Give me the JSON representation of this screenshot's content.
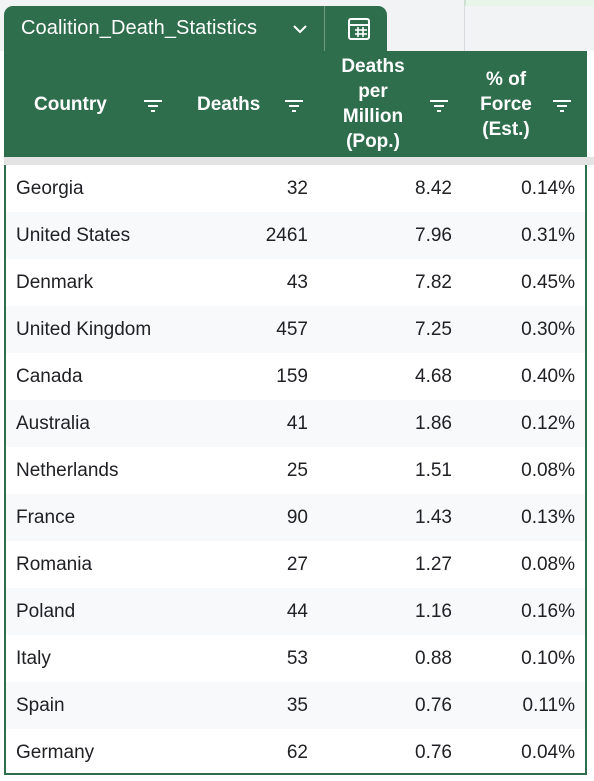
{
  "sheet": {
    "name": "Coalition_Death_Statistics"
  },
  "colors": {
    "header_green": "#2f6e4c",
    "header_text": "#ffffff",
    "alt_row": "#f8f9fa"
  },
  "icons": {
    "dropdown": "chevron-down-icon",
    "table": "table-icon",
    "filter": "filter-icon"
  },
  "columns": [
    {
      "lines": [
        "Country"
      ]
    },
    {
      "lines": [
        "Deaths"
      ]
    },
    {
      "lines": [
        "Deaths",
        "per",
        "Million",
        "(Pop.)"
      ]
    },
    {
      "lines": [
        "% of",
        "Force",
        "(Est.)"
      ]
    }
  ],
  "rows": [
    {
      "country": "Georgia",
      "deaths": "32",
      "per_million": "8.42",
      "force": "0.14%"
    },
    {
      "country": "United States",
      "deaths": "2461",
      "per_million": "7.96",
      "force": "0.31%"
    },
    {
      "country": "Denmark",
      "deaths": "43",
      "per_million": "7.82",
      "force": "0.45%"
    },
    {
      "country": "United Kingdom",
      "deaths": "457",
      "per_million": "7.25",
      "force": "0.30%"
    },
    {
      "country": "Canada",
      "deaths": "159",
      "per_million": "4.68",
      "force": "0.40%"
    },
    {
      "country": "Australia",
      "deaths": "41",
      "per_million": "1.86",
      "force": "0.12%"
    },
    {
      "country": "Netherlands",
      "deaths": "25",
      "per_million": "1.51",
      "force": "0.08%"
    },
    {
      "country": "France",
      "deaths": "90",
      "per_million": "1.43",
      "force": "0.13%"
    },
    {
      "country": "Romania",
      "deaths": "27",
      "per_million": "1.27",
      "force": "0.08%"
    },
    {
      "country": "Poland",
      "deaths": "44",
      "per_million": "1.16",
      "force": "0.16%"
    },
    {
      "country": "Italy",
      "deaths": "53",
      "per_million": "0.88",
      "force": "0.10%"
    },
    {
      "country": "Spain",
      "deaths": "35",
      "per_million": "0.76",
      "force": "0.11%"
    },
    {
      "country": "Germany",
      "deaths": "62",
      "per_million": "0.76",
      "force": "0.04%"
    }
  ]
}
